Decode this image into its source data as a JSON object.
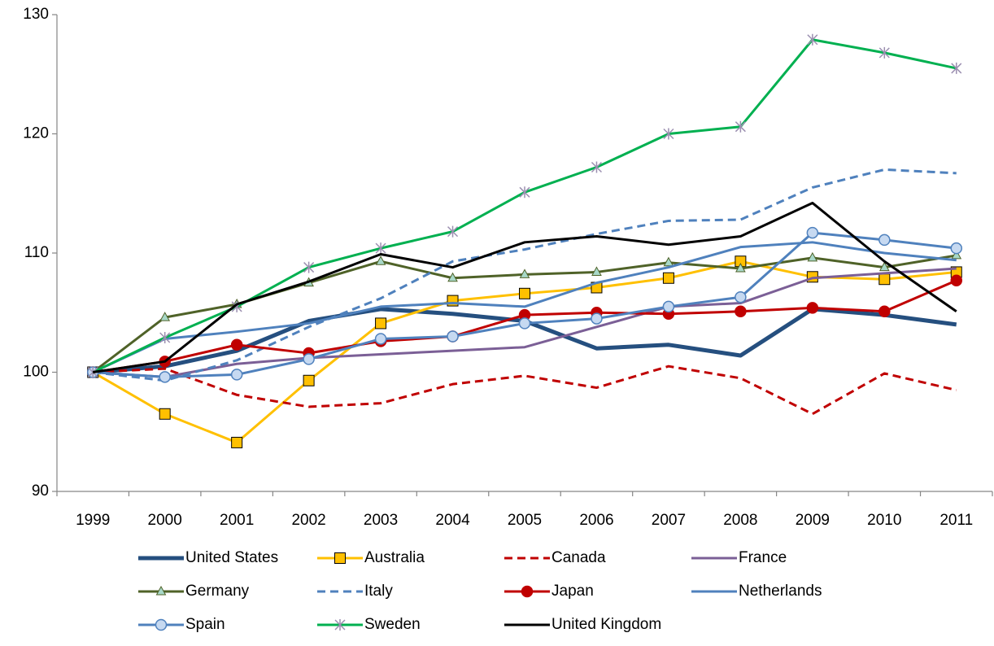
{
  "chart_data": {
    "type": "line",
    "categories": [
      "1999",
      "2000",
      "2001",
      "2002",
      "2003",
      "2004",
      "2005",
      "2006",
      "2007",
      "2008",
      "2009",
      "2010",
      "2011"
    ],
    "ylim": [
      90,
      130
    ],
    "yticks": [
      90,
      100,
      110,
      120,
      130
    ],
    "grid": false,
    "legend": "bottom",
    "series": [
      {
        "name": "United States",
        "color": "#254f7f",
        "line_width": 5,
        "values": [
          100,
          100.5,
          101.8,
          104.3,
          105.3,
          104.9,
          104.3,
          102.0,
          102.3,
          101.4,
          105.3,
          104.8,
          104.0
        ]
      },
      {
        "name": "Australia",
        "color": "#ffc000",
        "marker": "square",
        "values": [
          100,
          96.5,
          94.1,
          99.3,
          104.1,
          106.0,
          106.6,
          107.1,
          107.9,
          109.3,
          108.0,
          107.8,
          108.4
        ]
      },
      {
        "name": "Canada",
        "color": "#c00000",
        "dash": true,
        "values": [
          100,
          100.3,
          98.1,
          97.1,
          97.4,
          99.0,
          99.7,
          98.7,
          100.5,
          99.5,
          96.5,
          99.9,
          98.5
        ]
      },
      {
        "name": "France",
        "color": "#7b5f96",
        "values": [
          100,
          99.6,
          100.7,
          101.2,
          101.5,
          101.8,
          102.1,
          103.8,
          105.5,
          105.8,
          107.9,
          108.3,
          108.7
        ]
      },
      {
        "name": "Germany",
        "color": "#4f6228",
        "marker": "triangle",
        "values": [
          100,
          104.6,
          105.7,
          107.5,
          109.3,
          107.9,
          108.2,
          108.4,
          109.2,
          108.7,
          109.6,
          108.8,
          109.8
        ]
      },
      {
        "name": "Italy",
        "color": "#4f81bd",
        "dash": true,
        "values": [
          100,
          99.3,
          101.0,
          103.8,
          106.2,
          109.3,
          110.3,
          111.6,
          112.7,
          112.8,
          115.5,
          117.0,
          116.7
        ]
      },
      {
        "name": "Japan",
        "color": "#c00000",
        "marker": "circle",
        "values": [
          100,
          100.9,
          102.3,
          101.6,
          102.6,
          103.0,
          104.8,
          105.0,
          104.9,
          105.1,
          105.4,
          105.1,
          107.7
        ]
      },
      {
        "name": "Netherlands",
        "color": "#4f81bd",
        "values": [
          100,
          102.8,
          103.4,
          104.1,
          105.5,
          105.8,
          105.5,
          107.5,
          108.8,
          110.5,
          110.9,
          110.0,
          109.4
        ]
      },
      {
        "name": "Spain",
        "color": "#4f81bd",
        "marker": "circle",
        "marker_fill": "#c6d9f1",
        "values": [
          100,
          99.6,
          99.8,
          101.1,
          102.8,
          103.0,
          104.1,
          104.5,
          105.5,
          106.3,
          111.7,
          111.1,
          110.4
        ]
      },
      {
        "name": "Sweden",
        "color": "#00b050",
        "marker": "star",
        "values": [
          100,
          102.9,
          105.5,
          108.8,
          110.4,
          111.8,
          115.1,
          117.2,
          120.0,
          120.6,
          127.9,
          126.8,
          125.5
        ]
      },
      {
        "name": "United Kingdom",
        "color": "#000000",
        "values": [
          100,
          100.9,
          105.7,
          107.6,
          109.9,
          108.8,
          110.9,
          111.4,
          110.7,
          111.4,
          114.2,
          109.3,
          105.1
        ]
      }
    ]
  }
}
